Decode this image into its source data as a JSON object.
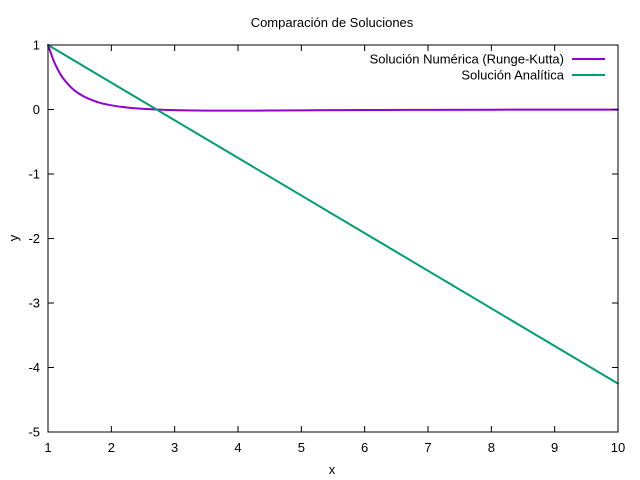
{
  "chart_data": {
    "type": "line",
    "title": "Comparación de Soluciones",
    "xlabel": "x",
    "ylabel": "y",
    "xlim": [
      1,
      10
    ],
    "ylim": [
      -5,
      1
    ],
    "xticks": [
      "1",
      "2",
      "3",
      "4",
      "5",
      "6",
      "7",
      "8",
      "9",
      "10"
    ],
    "yticks": [
      "-5",
      "-4",
      "-3",
      "-2",
      "-1",
      "0",
      "1"
    ],
    "grid": false,
    "legend_position": "top-right",
    "series": [
      {
        "name": "Solución Numérica (Runge-Kutta)",
        "color": "#9400d3",
        "x": [
          1,
          1.1,
          1.2,
          1.3,
          1.4,
          1.5,
          1.6,
          1.8,
          2.0,
          2.2,
          2.4,
          2.6,
          2.8,
          3.0,
          3.2,
          3.5,
          3.7,
          4.0,
          4.5,
          5.0,
          5.5,
          6.0,
          7.0,
          8.0,
          9.0,
          10.0
        ],
        "y": [
          1.0,
          0.73,
          0.54,
          0.41,
          0.31,
          0.24,
          0.185,
          0.11,
          0.065,
          0.037,
          0.018,
          0.006,
          -0.004,
          -0.01,
          -0.014,
          -0.017,
          -0.018,
          -0.018,
          -0.016,
          -0.013,
          -0.01,
          -0.008,
          -0.005,
          -0.003,
          -0.002,
          -0.001
        ]
      },
      {
        "name": "Solución Analítica",
        "color": "#009e73",
        "x": [
          1,
          10
        ],
        "y": [
          1.0,
          -4.25
        ]
      }
    ]
  }
}
